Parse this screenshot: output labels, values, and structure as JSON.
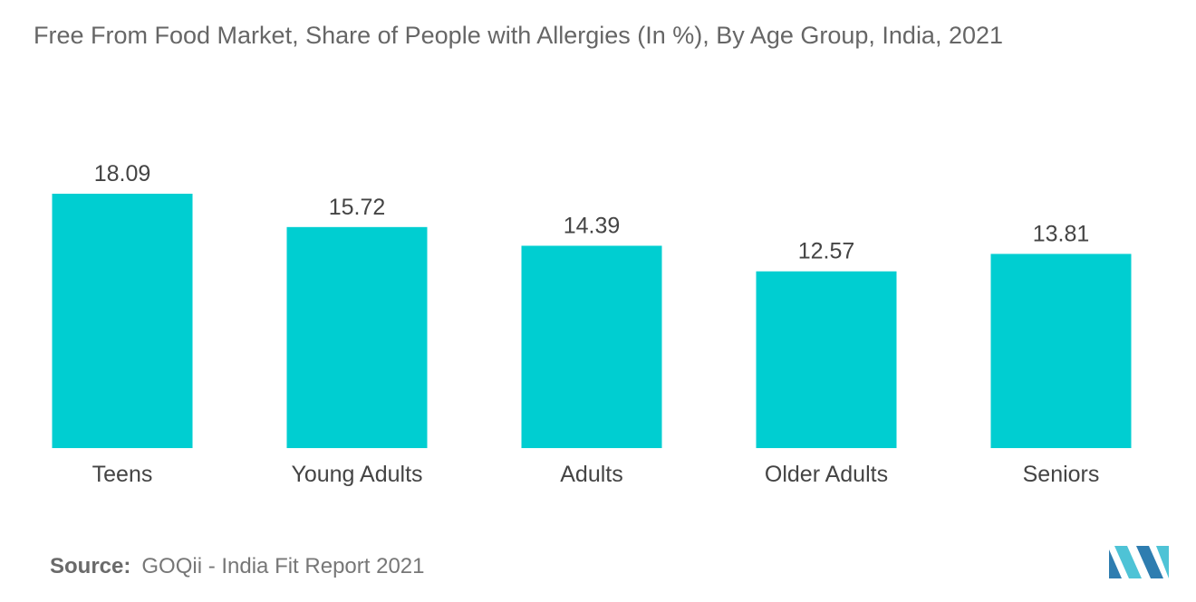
{
  "title": "Free From Food Market, Share of People with Allergies (In %), By Age Group, India, 2021",
  "source": {
    "label": "Source:",
    "text": "GOQii - India Fit Report 2021"
  },
  "colors": {
    "bar": "#00CED1",
    "text": "#444444",
    "logo_dark": "#2E7DB0",
    "logo_light": "#4EC3D6"
  },
  "logo": {
    "icon": "mordor-intelligence-logo"
  },
  "chart_data": {
    "type": "bar",
    "title": "Free From Food Market, Share of People with Allergies (In %), By Age Group, India, 2021",
    "categories": [
      "Teens",
      "Young Adults",
      "Adults",
      "Older Adults",
      "Seniors"
    ],
    "values": [
      18.09,
      15.72,
      14.39,
      12.57,
      13.81
    ],
    "data_labels": [
      "18.09",
      "15.72",
      "14.39",
      "12.57",
      "13.81"
    ],
    "xlabel": "",
    "ylabel": "",
    "ylim": [
      0,
      18.09
    ],
    "grid": false,
    "legend": "none"
  }
}
